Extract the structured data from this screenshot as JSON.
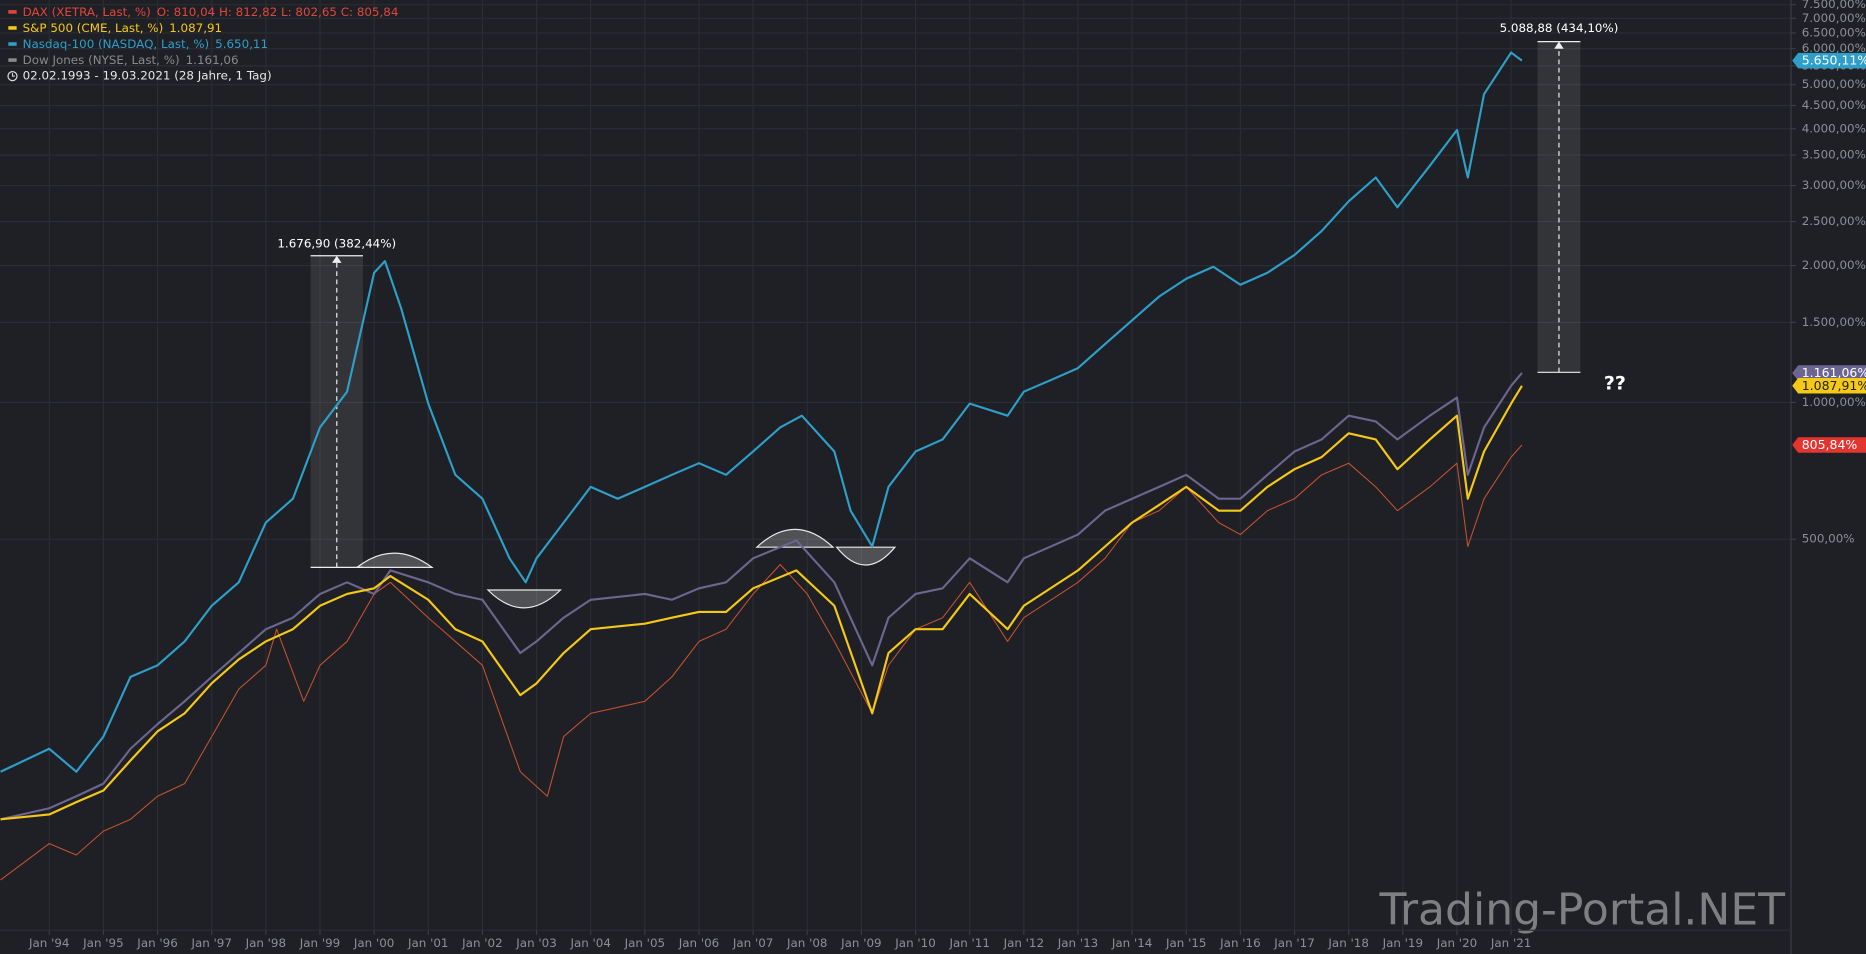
{
  "chart_data": {
    "type": "line",
    "log_scale": true,
    "grid": true,
    "xlim": [
      1993.09,
      2026.17
    ],
    "ylim": [
      69,
      7680
    ],
    "yticks": [
      {
        "value": 500,
        "label": "500,00%"
      },
      {
        "value": 1000,
        "label": "1.000,00%"
      },
      {
        "value": 1500,
        "label": "1.500,00%"
      },
      {
        "value": 2000,
        "label": "2.000,00%"
      },
      {
        "value": 2500,
        "label": "2.500,00%"
      },
      {
        "value": 3000,
        "label": "3.000,00%"
      },
      {
        "value": 3500,
        "label": "3.500,00%"
      },
      {
        "value": 4000,
        "label": "4.000,00%"
      },
      {
        "value": 4500,
        "label": "4.500,00%"
      },
      {
        "value": 5000,
        "label": "5.000,00%"
      },
      {
        "value": 5500,
        "label": "5.500,00%"
      },
      {
        "value": 6000,
        "label": "6.000,00%"
      },
      {
        "value": 6500,
        "label": "6.500,00%"
      },
      {
        "value": 7000,
        "label": "7.000,00%"
      },
      {
        "value": 7500,
        "label": "7.500,00%"
      }
    ],
    "xticks": [
      {
        "value": 1994,
        "label": "Jan '94"
      },
      {
        "value": 1995,
        "label": "Jan '95"
      },
      {
        "value": 1996,
        "label": "Jan '96"
      },
      {
        "value": 1997,
        "label": "Jan '97"
      },
      {
        "value": 1998,
        "label": "Jan '98"
      },
      {
        "value": 1999,
        "label": "Jan '99"
      },
      {
        "value": 2000,
        "label": "Jan '00"
      },
      {
        "value": 2001,
        "label": "Jan '01"
      },
      {
        "value": 2002,
        "label": "Jan '02"
      },
      {
        "value": 2003,
        "label": "Jan '03"
      },
      {
        "value": 2004,
        "label": "Jan '04"
      },
      {
        "value": 2005,
        "label": "Jan '05"
      },
      {
        "value": 2006,
        "label": "Jan '06"
      },
      {
        "value": 2007,
        "label": "Jan '07"
      },
      {
        "value": 2008,
        "label": "Jan '08"
      },
      {
        "value": 2009,
        "label": "Jan '09"
      },
      {
        "value": 2010,
        "label": "Jan '10"
      },
      {
        "value": 2011,
        "label": "Jan '11"
      },
      {
        "value": 2012,
        "label": "Jan '12"
      },
      {
        "value": 2013,
        "label": "Jan '13"
      },
      {
        "value": 2014,
        "label": "Jan '14"
      },
      {
        "value": 2015,
        "label": "Jan '15"
      },
      {
        "value": 2016,
        "label": "Jan '16"
      },
      {
        "value": 2017,
        "label": "Jan '17"
      },
      {
        "value": 2018,
        "label": "Jan '18"
      },
      {
        "value": 2019,
        "label": "Jan '19"
      },
      {
        "value": 2020,
        "label": "Jan '20"
      },
      {
        "value": 2021,
        "label": "Jan '21"
      }
    ],
    "date_range": "02.02.1993 - 19.03.2021  (28 Jahre, 1 Tag)",
    "annotations": [
      "1.676,90 (382,44%)",
      "5.088,88 (434,10%)",
      "??"
    ],
    "watermark": "Trading-Portal.NET",
    "series": [
      {
        "name": "DAX (XETRA, Last, %)",
        "legend_info": "O: 810,04  H: 812,82  L: 802,65  C: 805,84",
        "last_label": "805,84%",
        "color": "#c4512f",
        "label_color": "#e3342f",
        "text_color": "#e0463a",
        "width": 0.9,
        "x": [
          1993.1,
          1994,
          1994.5,
          1995,
          1995.5,
          1996,
          1996.5,
          1997,
          1997.5,
          1998,
          1998.2,
          1998.7,
          1999,
          1999.5,
          2000,
          2000.3,
          2001,
          2001.5,
          2002,
          2002.7,
          2003.2,
          2003.5,
          2004,
          2005,
          2005.5,
          2006,
          2006.5,
          2007,
          2007.5,
          2008,
          2008.5,
          2009.2,
          2009.5,
          2010,
          2010.5,
          2011,
          2011.7,
          2012,
          2013,
          2013.5,
          2014,
          2014.5,
          2015,
          2015.6,
          2016,
          2016.5,
          2017,
          2017.5,
          2018,
          2018.5,
          2018.9,
          2019.5,
          2020,
          2020.2,
          2020.5,
          2021,
          2021.2
        ],
        "values": [
          89,
          107,
          101,
          114,
          121,
          136,
          145,
          184,
          234,
          264,
          317,
          220,
          264,
          298,
          379,
          402,
          336,
          298,
          264,
          154,
          136,
          184,
          207,
          220,
          249,
          298,
          317,
          379,
          440,
          379,
          298,
          207,
          264,
          317,
          336,
          402,
          298,
          336,
          402,
          454,
          544,
          578,
          652,
          544,
          512,
          578,
          614,
          693,
          735,
          652,
          578,
          652,
          735,
          482,
          614,
          758,
          805.84
        ]
      },
      {
        "name": "S&P 500 (CME, Last, %)",
        "legend_info": "1.087,91",
        "last_label": "1.087,91%",
        "color": "#f5c915",
        "label_color": "#f5c915",
        "text_color": "#f5c915",
        "width": 1.8,
        "x": [
          1993.1,
          1994,
          1994.5,
          1995,
          1995.5,
          1996,
          1996.5,
          1997,
          1997.5,
          1998,
          1998.5,
          1999,
          1999.5,
          2000,
          2000.3,
          2001,
          2001.5,
          2002,
          2002.7,
          2003,
          2003.5,
          2004,
          2005,
          2005.5,
          2006,
          2006.5,
          2007,
          2007.8,
          2008.5,
          2009.2,
          2009.5,
          2010,
          2010.5,
          2011,
          2011.7,
          2012,
          2013,
          2013.5,
          2014,
          2014.5,
          2015,
          2015.6,
          2016,
          2016.5,
          2017,
          2017.5,
          2018,
          2018.5,
          2018.9,
          2019.5,
          2020,
          2020.2,
          2020.5,
          2021,
          2021.2
        ],
        "values": [
          121,
          124,
          132,
          140,
          163,
          189,
          207,
          241,
          272,
          298,
          317,
          357,
          379,
          390,
          415,
          368,
          317,
          298,
          227,
          241,
          281,
          317,
          326,
          336,
          346,
          346,
          390,
          427,
          357,
          207,
          281,
          317,
          317,
          379,
          317,
          357,
          427,
          482,
          544,
          595,
          652,
          578,
          578,
          652,
          713,
          758,
          855,
          829,
          713,
          829,
          935,
          614,
          780,
          994,
          1087.91
        ]
      },
      {
        "name": "Nasdaq-100 (NASDAQ, Last, %)",
        "legend_info": "5.650,11",
        "last_label": "5.650,11%",
        "color": "#2e9fc9",
        "label_color": "#2e9fc9",
        "text_color": "#2e9fc9",
        "width": 1.8,
        "x": [
          1993.1,
          1994,
          1994.5,
          1995,
          1995.5,
          1996,
          1996.5,
          1997,
          1997.5,
          1998,
          1998.5,
          1999,
          1999.5,
          2000,
          2000.2,
          2000.5,
          2001,
          2001.5,
          2002,
          2002.5,
          2002.8,
          2003,
          2003.5,
          2004,
          2004.5,
          2005,
          2005.5,
          2006,
          2006.5,
          2007,
          2007.5,
          2007.9,
          2008.5,
          2008.8,
          2009.2,
          2009.5,
          2010,
          2010.5,
          2011,
          2011.7,
          2012,
          2012.5,
          2013,
          2013.5,
          2014,
          2014.5,
          2015,
          2015.5,
          2016,
          2016.5,
          2017,
          2017.5,
          2018,
          2018.5,
          2018.9,
          2019.5,
          2020,
          2020.2,
          2020.5,
          2021,
          2021.2
        ],
        "values": [
          154,
          173,
          154,
          184,
          249,
          264,
          298,
          357,
          402,
          544,
          614,
          881,
          1056,
          1929,
          2046,
          1610,
          994,
          693,
          614,
          454,
          402,
          454,
          544,
          652,
          614,
          652,
          693,
          735,
          693,
          780,
          881,
          935,
          780,
          578,
          482,
          652,
          780,
          829,
          994,
          935,
          1056,
          1120,
          1190,
          1344,
          1516,
          1710,
          1871,
          1988,
          1815,
          1929,
          2111,
          2382,
          2770,
          3125,
          2688,
          3318,
          3975,
          3125,
          4765,
          5885,
          5650.11
        ]
      },
      {
        "name": "Dow Jones (NYSE, Last, %)",
        "legend_info": "1.161,06",
        "last_label": "1.161,06%",
        "color": "#6c6590",
        "label_color": "#6c6590",
        "text_color": "#8a8a8a",
        "width": 1.8,
        "x": [
          1993.1,
          1994,
          1994.5,
          1995,
          1995.5,
          1996,
          1996.5,
          1997,
          1997.5,
          1998,
          1998.5,
          1999,
          1999.5,
          2000,
          2000.3,
          2001,
          2001.5,
          2002,
          2002.7,
          2003,
          2003.5,
          2004,
          2005,
          2005.5,
          2006,
          2006.5,
          2007,
          2007.8,
          2008.5,
          2009.2,
          2009.5,
          2010,
          2010.5,
          2011,
          2011.7,
          2012,
          2013,
          2013.5,
          2014,
          2014.5,
          2015,
          2015.6,
          2016,
          2016.5,
          2017,
          2017.5,
          2018,
          2018.5,
          2018.9,
          2019.5,
          2020,
          2020.2,
          2020.5,
          2021,
          2021.2
        ],
        "values": [
          121,
          128,
          136,
          145,
          173,
          196,
          220,
          249,
          281,
          317,
          336,
          379,
          402,
          379,
          427,
          402,
          379,
          368,
          281,
          298,
          336,
          368,
          379,
          368,
          390,
          402,
          454,
          497,
          402,
          264,
          336,
          379,
          390,
          454,
          402,
          454,
          512,
          578,
          614,
          652,
          693,
          614,
          614,
          693,
          780,
          829,
          935,
          908,
          829,
          935,
          1025,
          693,
          881,
          1088,
          1161.06
        ]
      }
    ]
  }
}
